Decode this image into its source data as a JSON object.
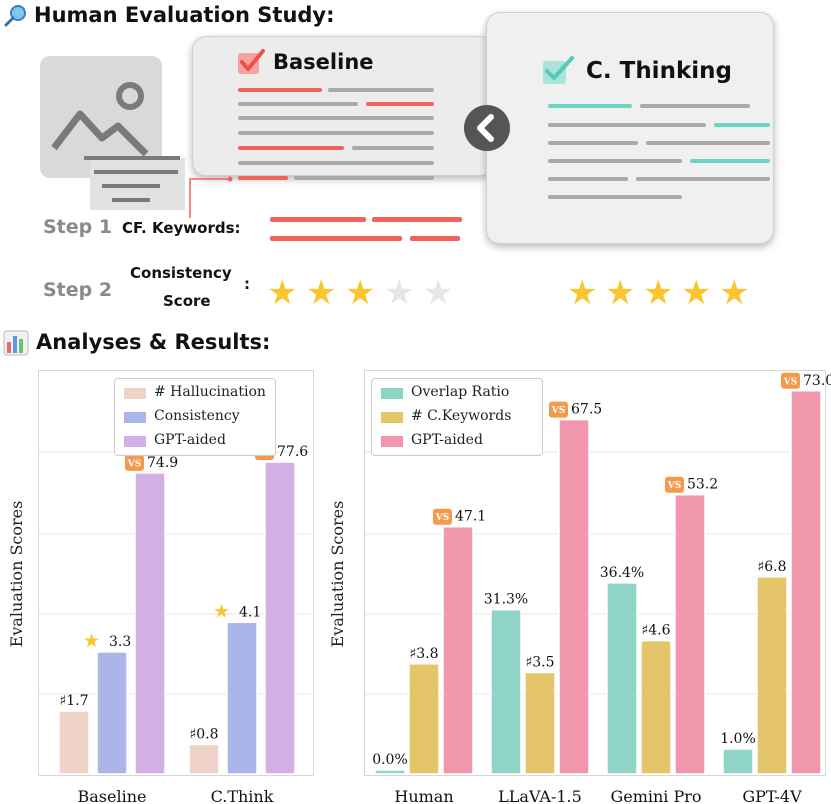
{
  "study": {
    "title": "Human Evaluation Study:",
    "baseline_title": "Baseline",
    "cthinking_title": "C. Thinking",
    "step1_label": "Step 1",
    "step1_text": "CF. Keywords:",
    "step2_label": "Step 2",
    "step2_text_line1": "Consistency",
    "step2_text_line2": "Score",
    "step2_colon": ":",
    "baseline_stars": {
      "filled": 3,
      "total": 5
    },
    "cthinking_stars": {
      "filled": 5,
      "total": 5
    },
    "colors": {
      "baseline_accent": "#f0625a",
      "cthinking_accent": "#6ad5c4",
      "star": "#fbc531",
      "star_empty": "#e6e6e6"
    },
    "icons": [
      "magnifier-icon",
      "image-placeholder-icon",
      "checkbox-icon",
      "chevron-left-icon",
      "star-icon"
    ]
  },
  "analyses": {
    "title": "Analyses & Results:",
    "icon": "bar-chart-icon"
  },
  "chart_data": [
    {
      "type": "bar",
      "ylabel": "Evaluation Scores",
      "categories": [
        "Baseline",
        "C.Think"
      ],
      "series": [
        {
          "name": "# Hallucination",
          "color": "#f0d3c8",
          "values": [
            1.7,
            0.8
          ],
          "labels": [
            "♯1.7",
            "♯0.8"
          ]
        },
        {
          "name": "Consistency",
          "color": "#aab6ea",
          "values": [
            3.3,
            4.1
          ],
          "labels": [
            "3.3",
            "4.1"
          ]
        },
        {
          "name": "GPT-aided",
          "color": "#d2b0e6",
          "values": [
            74.9,
            77.6
          ],
          "labels": [
            "74.9",
            "77.6"
          ]
        }
      ],
      "legend": "top",
      "grid": true
    },
    {
      "type": "bar",
      "ylabel": "Evaluation Scores",
      "categories": [
        "Human",
        "LLaVA-1.5",
        "Gemini Pro",
        "GPT-4V"
      ],
      "series": [
        {
          "name": "Overlap Ratio",
          "color": "#8fd4c6",
          "values": [
            0.0,
            31.3,
            36.4,
            1.0
          ],
          "labels": [
            "0.0%",
            "31.3%",
            "36.4%",
            "1.0%"
          ]
        },
        {
          "name": "# C.Keywords",
          "color": "#e5c56a",
          "values": [
            3.8,
            3.5,
            4.6,
            6.8
          ],
          "labels": [
            "♯3.8",
            "♯3.5",
            "♯4.6",
            "♯6.8"
          ]
        },
        {
          "name": "GPT-aided",
          "color": "#f097ab",
          "values": [
            47.1,
            67.5,
            53.2,
            73.0
          ],
          "labels": [
            "47.1",
            "67.5",
            "53.2",
            "73.0"
          ]
        }
      ],
      "legend": "top-left",
      "grid": true
    }
  ],
  "badges": {
    "vs_text": "VS",
    "vs_color": "#f39a4c",
    "star_color": "#fbc531"
  }
}
